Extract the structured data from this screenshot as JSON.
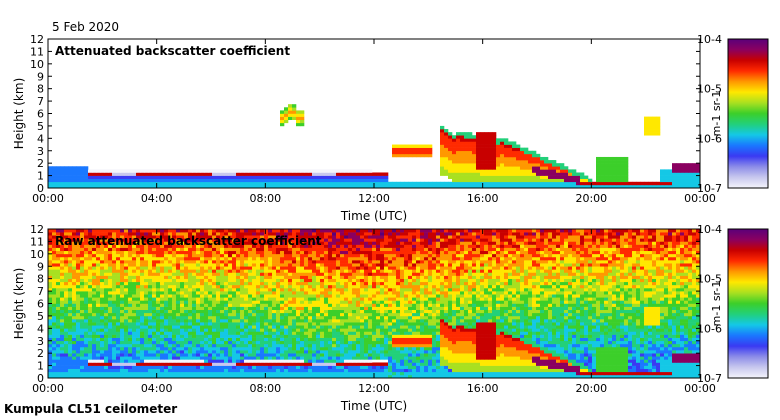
{
  "date": "5 Feb 2020",
  "footer": "Kumpula CL51 ceilometer",
  "colors": {
    "cmap": [
      "#f4f4fb",
      "#c8c8ee",
      "#8c8ce8",
      "#3a3af2",
      "#1a78ff",
      "#14c8e6",
      "#22d07a",
      "#3ccf2a",
      "#a8e020",
      "#ffe800",
      "#ff9800",
      "#ff2a00",
      "#c80000",
      "#8a0060",
      "#5a007a"
    ],
    "background": "#ffffff",
    "axis": "#000000"
  },
  "chart_data": [
    {
      "type": "heatmap",
      "title": "Attenuated backscatter coefficient",
      "xlabel": "Time (UTC)",
      "ylabel": "Height (km)",
      "xlim": [
        0,
        24
      ],
      "ylim": [
        0,
        12
      ],
      "x_ticks": [
        "00:00",
        "04:00",
        "08:00",
        "12:00",
        "16:00",
        "20:00",
        "00:00"
      ],
      "y_ticks": [
        "0",
        "1",
        "2",
        "3",
        "4",
        "5",
        "6",
        "7",
        "8",
        "9",
        "10",
        "11",
        "12"
      ],
      "colorbar": {
        "scale": "log",
        "range": [
          1e-07,
          0.0001
        ],
        "ticks": [
          "10-7",
          "10-6",
          "10-5",
          "10-4"
        ],
        "label": "m-1 sr-1"
      },
      "features": {
        "boundary_layer_top_km": 1.1,
        "cloud_layers": [
          {
            "t_start": 8.6,
            "t_end": 9.4,
            "h_low": 5.2,
            "h_high": 6.8
          },
          {
            "t_start": 12.6,
            "t_end": 14.2,
            "h_low": 2.4,
            "h_high": 3.4
          },
          {
            "t_start": 14.5,
            "t_end": 16.0,
            "h_low": 0.4,
            "h_high": 5.5
          },
          {
            "t_start": 16.0,
            "t_end": 20.0,
            "h_low": 0.4,
            "h_high": 4.8
          },
          {
            "t_start": 22.0,
            "t_end": 22.6,
            "h_low": 4.2,
            "h_high": 5.8
          },
          {
            "t_start": 23.0,
            "t_end": 24.0,
            "h_low": 1.0,
            "h_high": 2.2
          }
        ]
      }
    },
    {
      "type": "heatmap",
      "title": "Raw attenuated backscatter coefficient",
      "xlabel": "Time (UTC)",
      "ylabel": "Height (km)",
      "xlim": [
        0,
        24
      ],
      "ylim": [
        0,
        12
      ],
      "x_ticks": [
        "00:00",
        "04:00",
        "08:00",
        "12:00",
        "16:00",
        "20:00",
        "00:00"
      ],
      "y_ticks": [
        "0",
        "1",
        "2",
        "3",
        "4",
        "5",
        "6",
        "7",
        "8",
        "9",
        "10",
        "11",
        "12"
      ],
      "colorbar": {
        "scale": "log",
        "range": [
          1e-07,
          0.0001
        ],
        "ticks": [
          "10-7",
          "10-6",
          "10-5",
          "10-4"
        ],
        "label": "m-1 sr-1"
      }
    }
  ]
}
